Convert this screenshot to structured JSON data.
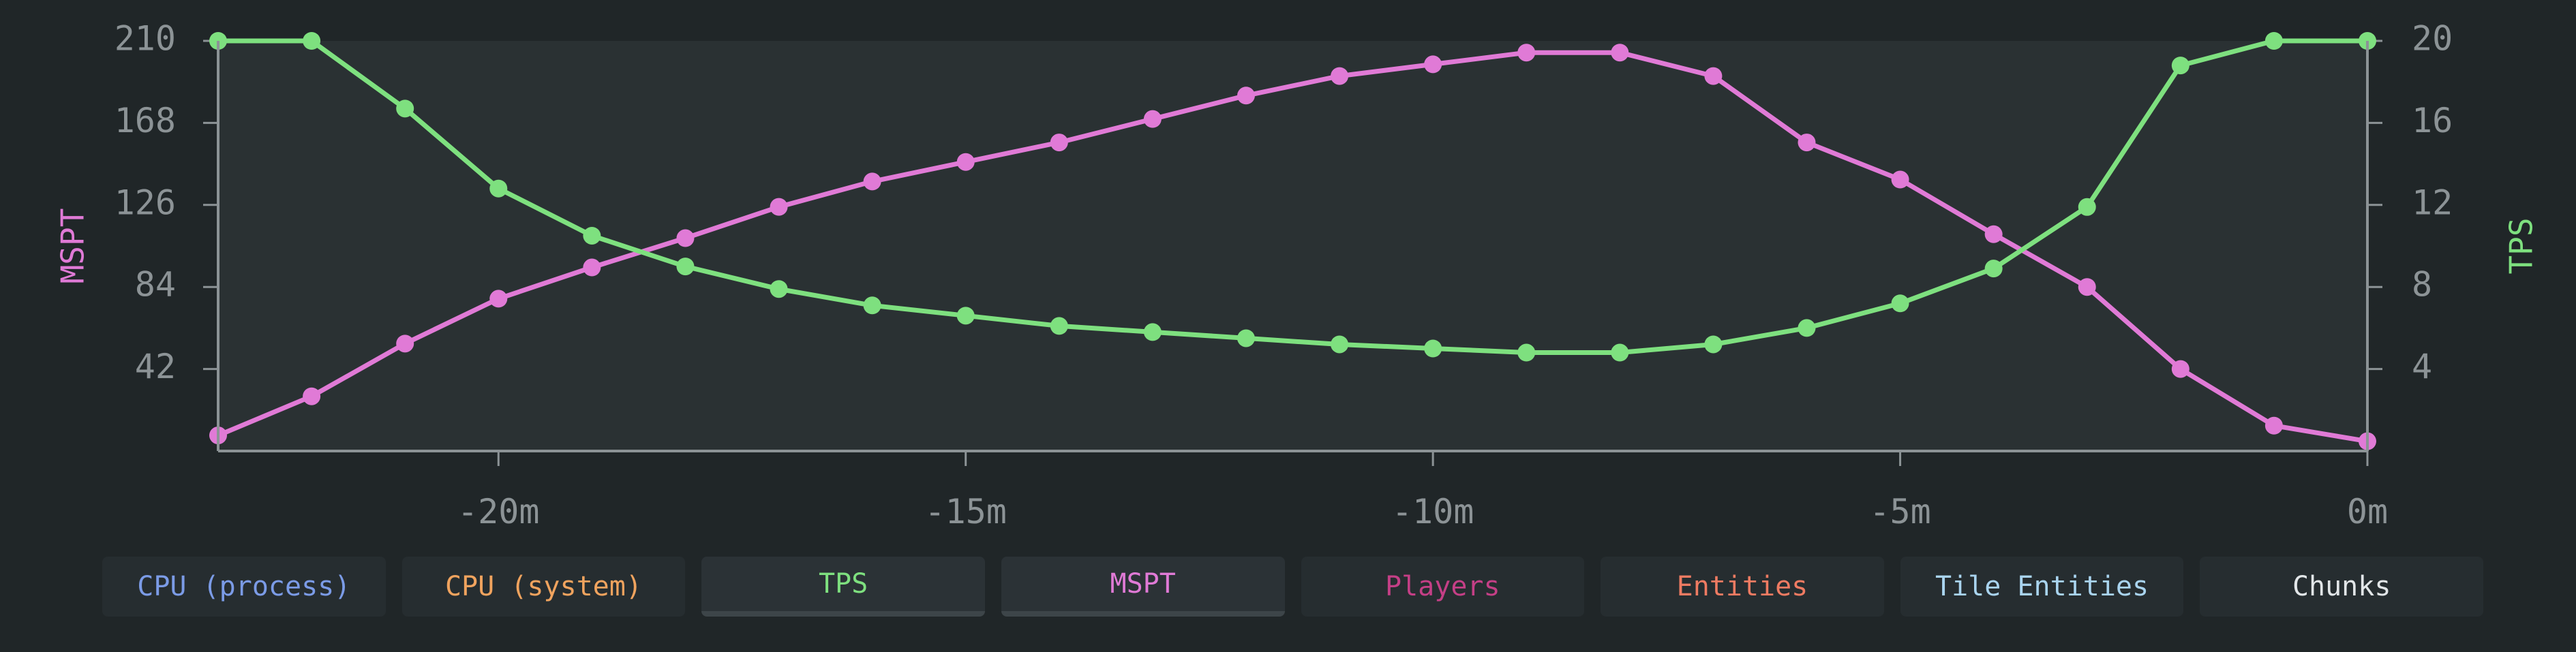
{
  "chart_data": {
    "type": "line",
    "x_tick_labels": [
      "-20m",
      "-15m",
      "-10m",
      "-5m",
      "0m"
    ],
    "x_ticks": [
      -20,
      -15,
      -10,
      -5,
      0
    ],
    "xlim": [
      -23,
      0
    ],
    "x": [
      -23,
      -22,
      -21,
      -20,
      -19,
      -18,
      -17,
      -16,
      -15,
      -14,
      -13,
      -12,
      -11,
      -10,
      -9,
      -8,
      -7,
      -6,
      -5,
      -4,
      -3,
      -2,
      -1,
      0
    ],
    "y_left": {
      "label": "MSPT",
      "ticks": [
        42,
        84,
        126,
        168,
        210
      ],
      "ylim": [
        0,
        210
      ],
      "color": "#e07ad6"
    },
    "y_right": {
      "label": "TPS",
      "ticks": [
        4,
        8,
        12,
        16,
        20
      ],
      "ylim": [
        0,
        20
      ],
      "color": "#7ee07f"
    },
    "series": [
      {
        "name": "MSPT",
        "axis": "left",
        "color": "#e07ad6",
        "values": [
          8,
          28,
          55,
          78,
          94,
          109,
          125,
          138,
          148,
          158,
          170,
          182,
          192,
          198,
          204,
          204,
          192,
          158,
          139,
          111,
          84,
          42,
          13,
          5
        ]
      },
      {
        "name": "TPS",
        "axis": "right",
        "color": "#7ee07f",
        "values": [
          20,
          20,
          16.7,
          12.8,
          10.5,
          9.0,
          7.9,
          7.1,
          6.6,
          6.1,
          5.8,
          5.5,
          5.2,
          5.0,
          4.8,
          4.8,
          5.2,
          6.0,
          7.2,
          8.9,
          11.9,
          18.8,
          20,
          20
        ]
      }
    ],
    "grid": false
  },
  "tabs": [
    {
      "label": "CPU (process)",
      "color": "#7b9be6",
      "active": false
    },
    {
      "label": "CPU (system)",
      "color": "#f0a35e",
      "active": false
    },
    {
      "label": "TPS",
      "color": "#7ee07f",
      "active": true
    },
    {
      "label": "MSPT",
      "color": "#e07ad6",
      "active": true
    },
    {
      "label": "Players",
      "color": "#c43f86",
      "active": false
    },
    {
      "label": "Entities",
      "color": "#ef7b62",
      "active": false
    },
    {
      "label": "Tile Entities",
      "color": "#a9d4ef",
      "active": false
    },
    {
      "label": "Chunks",
      "color": "#e2e6e8",
      "active": false
    }
  ]
}
